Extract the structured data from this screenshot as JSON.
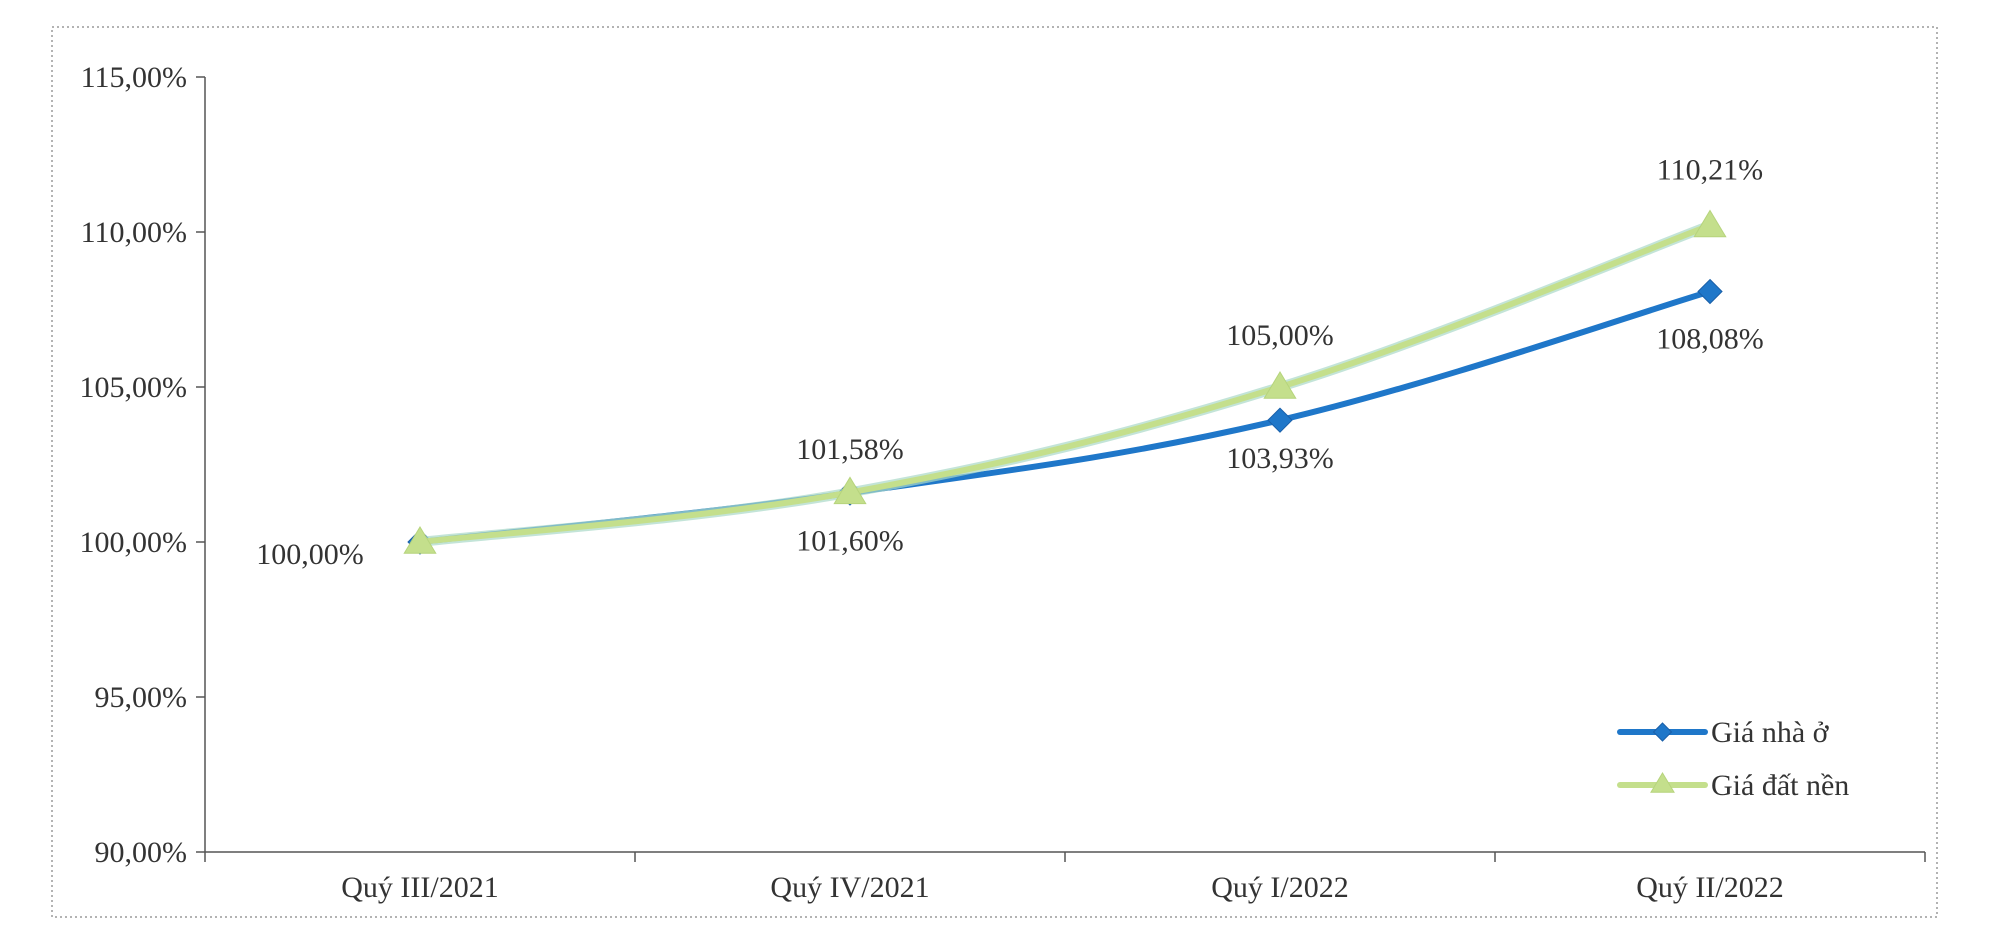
{
  "chart_data": {
    "type": "line",
    "title": "",
    "xlabel": "",
    "ylabel": "",
    "categories": [
      "Quý III/2021",
      "Quý IV/2021",
      "Quý I/2022",
      "Quý II/2022"
    ],
    "ylim": [
      90,
      115
    ],
    "yticks": [
      90,
      95,
      100,
      105,
      110,
      115
    ],
    "ytick_labels": [
      "90,00%",
      "95,00%",
      "100,00%",
      "105,00%",
      "110,00%",
      "115,00%"
    ],
    "grid": false,
    "legend_position": "bottom-right",
    "series": [
      {
        "name": "Giá nhà ở",
        "color": "#1f77c9",
        "marker": "diamond",
        "values": [
          100.0,
          101.58,
          103.93,
          108.08
        ],
        "labels": [
          "",
          "101,58%",
          "103,93%",
          "108,08%"
        ]
      },
      {
        "name": "Giá đất nền",
        "color": "#c4df8c",
        "marker": "triangle",
        "values": [
          100.0,
          101.6,
          105.0,
          110.21
        ],
        "labels": [
          "100,00%",
          "101,60%",
          "105,00%",
          "110,21%"
        ]
      }
    ]
  }
}
